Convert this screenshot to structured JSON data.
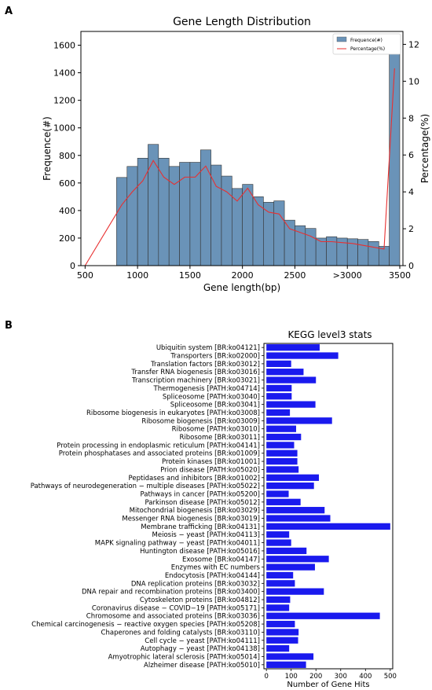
{
  "chart_data": [
    {
      "panel_label": "A",
      "type": "bar",
      "title": "Gene Length Distribution",
      "xlabel": "Gene length(bp)",
      "ylabel": "Frequence(#)",
      "y2label": "Percentage(%)",
      "xlim": [
        460,
        3530
      ],
      "ylim": [
        0,
        1700
      ],
      "y2lim": [
        0,
        12.7
      ],
      "x_ticks": [
        500,
        1000,
        1500,
        2000,
        2500,
        3000,
        3500
      ],
      "x_tick_labels": [
        "500",
        "1000",
        "1500",
        "2000",
        "2500",
        ">3000",
        "3500"
      ],
      "y_ticks": [
        0,
        200,
        400,
        600,
        800,
        1000,
        1200,
        1400,
        1600
      ],
      "y2_ticks": [
        0,
        2,
        4,
        6,
        8,
        10,
        12
      ],
      "legend": [
        "Frequence(#)",
        "Percentage(%)"
      ],
      "legend_position": "upper-right",
      "bar_color": "#6a93b8",
      "line_color": "#e83030",
      "bins": [
        {
          "x0": 800,
          "x1": 900,
          "value": 640
        },
        {
          "x0": 900,
          "x1": 1000,
          "value": 720
        },
        {
          "x0": 1000,
          "x1": 1100,
          "value": 780
        },
        {
          "x0": 1100,
          "x1": 1200,
          "value": 880
        },
        {
          "x0": 1200,
          "x1": 1300,
          "value": 780
        },
        {
          "x0": 1300,
          "x1": 1400,
          "value": 720
        },
        {
          "x0": 1400,
          "x1": 1500,
          "value": 750
        },
        {
          "x0": 1500,
          "x1": 1600,
          "value": 750
        },
        {
          "x0": 1600,
          "x1": 1700,
          "value": 840
        },
        {
          "x0": 1700,
          "x1": 1800,
          "value": 730
        },
        {
          "x0": 1800,
          "x1": 1900,
          "value": 650
        },
        {
          "x0": 1900,
          "x1": 2000,
          "value": 560
        },
        {
          "x0": 2000,
          "x1": 2100,
          "value": 590
        },
        {
          "x0": 2100,
          "x1": 2200,
          "value": 500
        },
        {
          "x0": 2200,
          "x1": 2300,
          "value": 460
        },
        {
          "x0": 2300,
          "x1": 2400,
          "value": 470
        },
        {
          "x0": 2400,
          "x1": 2500,
          "value": 330
        },
        {
          "x0": 2500,
          "x1": 2600,
          "value": 290
        },
        {
          "x0": 2600,
          "x1": 2700,
          "value": 270
        },
        {
          "x0": 2700,
          "x1": 2800,
          "value": 200
        },
        {
          "x0": 2800,
          "x1": 2900,
          "value": 210
        },
        {
          "x0": 2900,
          "x1": 3000,
          "value": 200
        },
        {
          "x0": 3000,
          "x1": 3100,
          "value": 195
        },
        {
          "x0": 3100,
          "x1": 3200,
          "value": 190
        },
        {
          "x0": 3200,
          "x1": 3300,
          "value": 175
        },
        {
          "x0": 3300,
          "x1": 3400,
          "value": 140
        },
        {
          "x0": 3400,
          "x1": 3500,
          "value": 1660
        }
      ],
      "line": {
        "x": [
          500,
          850,
          950,
          1050,
          1150,
          1250,
          1350,
          1450,
          1550,
          1650,
          1750,
          1850,
          1950,
          2050,
          2150,
          2250,
          2350,
          2450,
          2550,
          2650,
          2750,
          2850,
          2950,
          3050,
          3150,
          3250,
          3350,
          3450
        ],
        "y": [
          0,
          3.3,
          4.0,
          4.6,
          5.7,
          4.8,
          4.4,
          4.8,
          4.8,
          5.4,
          4.3,
          4.0,
          3.5,
          4.2,
          3.3,
          2.9,
          2.8,
          2.0,
          1.8,
          1.6,
          1.3,
          1.3,
          1.25,
          1.2,
          1.1,
          1.0,
          0.9,
          10.7
        ]
      }
    },
    {
      "panel_label": "B",
      "type": "bar",
      "orientation": "horizontal",
      "title": "KEGG level3 stats",
      "xlabel": "Number of Gene Hits",
      "xlim": [
        -10,
        510
      ],
      "x_ticks": [
        0,
        100,
        200,
        300,
        400,
        500
      ],
      "bar_color": "#1a1aee",
      "categories": [
        "Ubiquitin system [BR:ko04121]",
        "Transporters [BR:ko02000]",
        "Translation factors [BR:ko03012]",
        "Transfer RNA biogenesis [BR:ko03016]",
        "Transcription machinery [BR:ko03021]",
        "Thermogenesis [PATH:ko04714]",
        "Spliceosome [PATH:ko03040]",
        "Spliceosome [BR:ko03041]",
        "Ribosome biogenesis in eukaryotes [PATH:ko03008]",
        "Ribosome biogenesis [BR:ko03009]",
        "Ribosome [PATH:ko03010]",
        "Ribosome [BR:ko03011]",
        "Protein processing in endoplasmic reticulum [PATH:ko04141]",
        "Protein phosphatases and associated proteins [BR:ko01009]",
        "Protein kinases [BR:ko01001]",
        "Prion disease [PATH:ko05020]",
        "Peptidases and inhibitors [BR:ko01002]",
        "Pathways of neurodegeneration − multiple diseases [PATH:ko05022]",
        "Pathways in cancer [PATH:ko05200]",
        "Parkinson disease [PATH:ko05012]",
        "Mitochondrial biogenesis [BR:ko03029]",
        "Messenger RNA biogenesis [BR:ko03019]",
        "Membrane trafficking [BR:ko04131]",
        "Meiosis − yeast [PATH:ko04113]",
        "MAPK signaling pathway − yeast [PATH:ko04011]",
        "Huntington disease [PATH:ko05016]",
        "Exosome [BR:ko04147]",
        "Enzymes with EC numbers",
        "Endocytosis [PATH:ko04144]",
        "DNA replication proteins [BR:ko03032]",
        "DNA repair and recombination proteins [BR:ko03400]",
        "Cytoskeleton proteins [BR:ko04812]",
        "Coronavirus disease − COVID−19 [PATH:ko05171]",
        "Chromosome and associated proteins [BR:ko03036]",
        "Chemical carcinogenesis − reactive oxygen species [PATH:ko05208]",
        "Chaperones and folding catalysts [BR:ko03110]",
        "Cell cycle − yeast [PATH:ko04111]",
        "Autophagy − yeast [PATH:ko04138]",
        "Amyotrophic lateral sclerosis [PATH:ko05014]",
        "Alzheimer disease [PATH:ko05010]"
      ],
      "values": [
        215,
        290,
        100,
        150,
        200,
        102,
        102,
        198,
        95,
        265,
        120,
        140,
        112,
        125,
        125,
        130,
        212,
        192,
        90,
        138,
        235,
        258,
        500,
        92,
        100,
        162,
        252,
        196,
        108,
        115,
        232,
        96,
        92,
        458,
        115,
        130,
        128,
        92,
        190,
        160
      ]
    }
  ]
}
